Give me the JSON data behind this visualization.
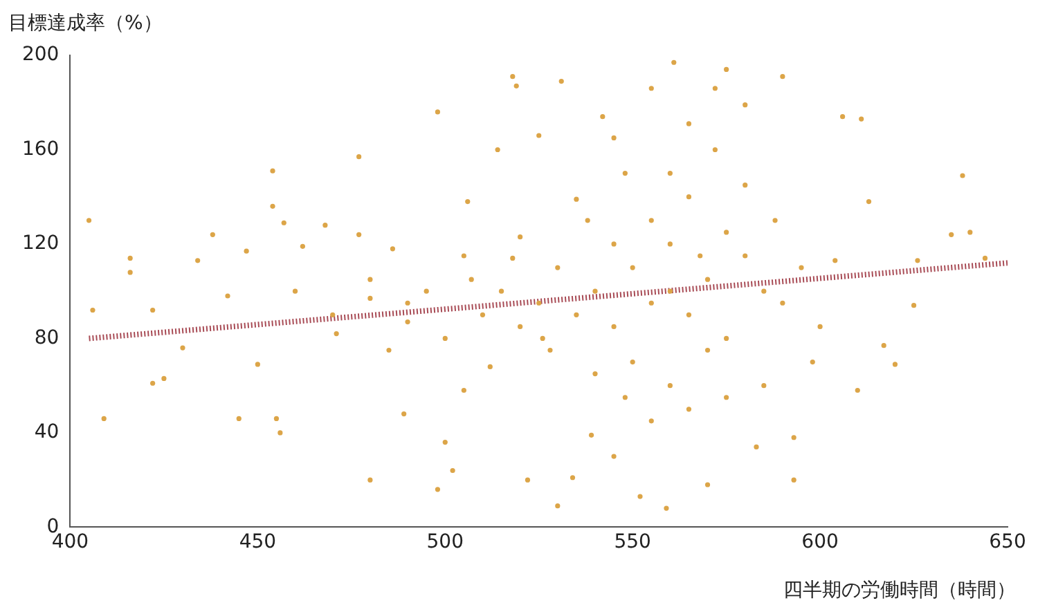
{
  "chart_data": {
    "type": "scatter",
    "xlabel": "四半期の労働時間（時間）",
    "ylabel": "目標達成率（%）",
    "xlim": [
      400,
      650
    ],
    "xticks": [
      400,
      450,
      500,
      550,
      600,
      650
    ],
    "ylim": [
      0,
      200
    ],
    "yticks": [
      0,
      40,
      80,
      120,
      160,
      200
    ],
    "grid": false,
    "legend": false,
    "series": [
      {
        "type": "scatter",
        "marker": "circle",
        "color": "#dca548",
        "x": [
          405,
          406,
          409,
          416,
          416,
          422,
          422,
          425,
          430,
          434,
          438,
          442,
          445,
          447,
          450,
          454,
          454,
          455,
          456,
          457,
          462,
          468,
          471,
          477,
          477,
          480,
          480,
          486,
          489,
          490,
          498,
          498,
          500,
          502,
          505,
          506,
          507,
          512,
          514,
          518,
          518,
          519,
          520,
          522,
          525,
          526,
          531,
          530,
          534,
          535,
          539,
          542,
          545,
          548,
          552,
          555,
          561,
          559,
          565,
          570,
          572,
          575,
          580,
          583,
          590,
          593,
          593,
          604,
          606,
          610,
          613,
          617,
          611,
          620,
          625,
          626,
          638,
          635,
          644,
          640,
          540,
          545,
          550,
          555,
          560,
          565,
          570,
          575,
          580,
          585,
          550,
          555,
          560,
          565,
          570,
          575,
          545,
          540,
          535,
          530,
          525,
          520,
          515,
          510,
          590,
          595,
          600,
          585,
          580,
          560,
          555,
          565,
          548,
          572,
          538,
          528,
          588,
          598,
          505,
          500,
          495,
          490,
          485,
          480,
          470,
          460,
          545,
          575,
          560,
          568
        ],
        "values": [
          130,
          92,
          46,
          114,
          108,
          92,
          61,
          63,
          76,
          113,
          124,
          98,
          46,
          117,
          69,
          151,
          136,
          46,
          40,
          129,
          119,
          128,
          82,
          157,
          124,
          20,
          97,
          118,
          48,
          87,
          176,
          16,
          36,
          24,
          58,
          138,
          105,
          68,
          160,
          114,
          191,
          187,
          123,
          20,
          166,
          80,
          189,
          9,
          21,
          139,
          39,
          174,
          30,
          55,
          13,
          186,
          197,
          8,
          171,
          18,
          186,
          194,
          179,
          34,
          191,
          20,
          38,
          113,
          174,
          58,
          138,
          77,
          173,
          69,
          94,
          113,
          149,
          124,
          114,
          125,
          100,
          85,
          110,
          95,
          120,
          90,
          105,
          80,
          115,
          100,
          70,
          130,
          60,
          140,
          75,
          125,
          120,
          65,
          90,
          110,
          95,
          85,
          100,
          90,
          95,
          110,
          85,
          60,
          145,
          150,
          45,
          50,
          150,
          160,
          130,
          75,
          130,
          70,
          115,
          80,
          100,
          95,
          75,
          105,
          90,
          100,
          165,
          55,
          100,
          115
        ]
      },
      {
        "type": "line",
        "marker": "none",
        "line_style": "dotted",
        "color": "#a84b55",
        "x": [
          405,
          650
        ],
        "values": [
          80,
          112
        ]
      }
    ]
  }
}
